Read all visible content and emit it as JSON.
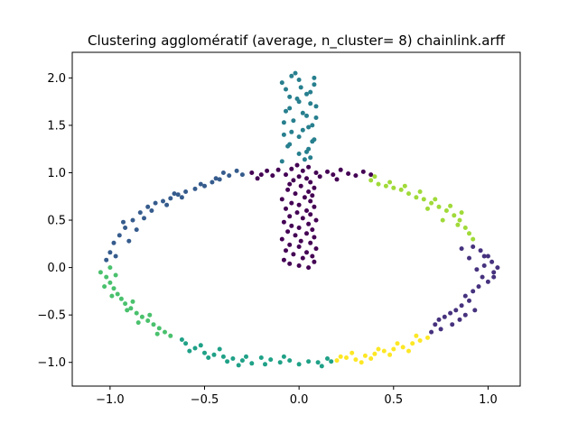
{
  "chart_data": {
    "type": "scatter",
    "title": "Clustering agglomératif (average, n_cluster= 8) chainlink.arff",
    "xlabel": "",
    "ylabel": "",
    "xlim": [
      -1.2,
      1.17
    ],
    "ylim": [
      -1.25,
      2.27
    ],
    "xticks": [
      -1.0,
      -0.5,
      0.0,
      0.5,
      1.0
    ],
    "xtick_labels": [
      "−1.0",
      "−0.5",
      "0.0",
      "0.5",
      "1.0"
    ],
    "yticks": [
      -1.0,
      -0.5,
      0.0,
      0.5,
      1.0,
      1.5,
      2.0
    ],
    "ytick_labels": [
      "−1.0",
      "−0.5",
      "0.0",
      "0.5",
      "1.0",
      "1.5",
      "2.0"
    ],
    "grid": false,
    "legend": "none",
    "clusters": [
      {
        "id": 0,
        "color": "#440154",
        "description": "vertical bar plus top ring arc",
        "points": [
          [
            0.0,
            0.02
          ],
          [
            0.05,
            0.0
          ],
          [
            -0.05,
            0.04
          ],
          [
            0.08,
            0.06
          ],
          [
            -0.08,
            0.08
          ],
          [
            0.02,
            0.1
          ],
          [
            0.07,
            0.12
          ],
          [
            -0.03,
            0.14
          ],
          [
            0.04,
            0.16
          ],
          [
            -0.07,
            0.18
          ],
          [
            0.09,
            0.2
          ],
          [
            0.0,
            0.22
          ],
          [
            -0.05,
            0.24
          ],
          [
            0.06,
            0.26
          ],
          [
            0.01,
            0.28
          ],
          [
            -0.09,
            0.3
          ],
          [
            0.08,
            0.32
          ],
          [
            -0.02,
            0.34
          ],
          [
            0.04,
            0.36
          ],
          [
            -0.06,
            0.38
          ],
          [
            0.07,
            0.4
          ],
          [
            0.0,
            0.42
          ],
          [
            -0.04,
            0.44
          ],
          [
            0.05,
            0.46
          ],
          [
            -0.08,
            0.48
          ],
          [
            0.09,
            0.5
          ],
          [
            0.02,
            0.52
          ],
          [
            -0.05,
            0.54
          ],
          [
            0.06,
            0.56
          ],
          [
            -0.01,
            0.58
          ],
          [
            0.04,
            0.6
          ],
          [
            -0.07,
            0.62
          ],
          [
            0.08,
            0.64
          ],
          [
            0.0,
            0.66
          ],
          [
            -0.04,
            0.68
          ],
          [
            0.06,
            0.7
          ],
          [
            -0.09,
            0.72
          ],
          [
            0.03,
            0.74
          ],
          [
            0.07,
            0.76
          ],
          [
            -0.02,
            0.78
          ],
          [
            0.05,
            0.8
          ],
          [
            -0.06,
            0.82
          ],
          [
            0.08,
            0.84
          ],
          [
            0.01,
            0.86
          ],
          [
            -0.05,
            0.88
          ],
          [
            0.06,
            0.9
          ],
          [
            -0.03,
            0.92
          ],
          [
            0.04,
            0.94
          ],
          [
            0.0,
            0.96
          ],
          [
            -0.07,
            0.98
          ],
          [
            0.09,
            1.0
          ],
          [
            0.02,
            1.02
          ],
          [
            -0.04,
            1.04
          ],
          [
            0.05,
            1.06
          ],
          [
            -0.01,
            1.08
          ],
          [
            -0.2,
            0.98
          ],
          [
            -0.17,
            1.02
          ],
          [
            -0.14,
            0.97
          ],
          [
            -0.11,
            1.03
          ],
          [
            -0.25,
            1.0
          ],
          [
            0.15,
            1.01
          ],
          [
            0.18,
            0.98
          ],
          [
            0.22,
            1.03
          ],
          [
            0.26,
            0.99
          ],
          [
            0.3,
            0.97
          ],
          [
            0.34,
            1.01
          ],
          [
            0.38,
            0.98
          ],
          [
            0.11,
            0.96
          ],
          [
            -0.22,
            0.94
          ],
          [
            0.2,
            0.93
          ]
        ]
      },
      {
        "id": 1,
        "color": "#46327e",
        "description": "right-lower ring segment",
        "points": [
          [
            0.92,
            0.22
          ],
          [
            0.96,
            0.18
          ],
          [
            0.98,
            0.12
          ],
          [
            1.02,
            0.06
          ],
          [
            1.05,
            0.0
          ],
          [
            1.03,
            -0.05
          ],
          [
            0.98,
            0.02
          ],
          [
            0.94,
            -0.02
          ],
          [
            0.9,
            0.1
          ],
          [
            0.97,
            -0.1
          ],
          [
            1.0,
            -0.15
          ],
          [
            0.95,
            -0.2
          ],
          [
            0.92,
            -0.25
          ],
          [
            0.88,
            -0.3
          ],
          [
            0.9,
            -0.35
          ],
          [
            0.86,
            -0.4
          ],
          [
            0.83,
            -0.45
          ],
          [
            0.8,
            -0.48
          ],
          [
            0.77,
            -0.52
          ],
          [
            0.74,
            -0.55
          ],
          [
            0.72,
            -0.6
          ],
          [
            0.75,
            -0.65
          ],
          [
            0.7,
            -0.68
          ],
          [
            0.88,
            -0.5
          ],
          [
            0.85,
            -0.55
          ],
          [
            0.93,
            -0.45
          ],
          [
            1.0,
            0.12
          ],
          [
            1.03,
            -0.1
          ],
          [
            0.86,
            0.2
          ],
          [
            0.81,
            -0.6
          ]
        ]
      },
      {
        "id": 2,
        "color": "#365c8d",
        "description": "left-upper ring segment",
        "points": [
          [
            -0.3,
            0.98
          ],
          [
            -0.33,
            1.02
          ],
          [
            -0.37,
            0.97
          ],
          [
            -0.42,
            0.93
          ],
          [
            -0.46,
            0.9
          ],
          [
            -0.5,
            0.86
          ],
          [
            -0.55,
            0.83
          ],
          [
            -0.6,
            0.8
          ],
          [
            -0.64,
            0.77
          ],
          [
            -0.68,
            0.73
          ],
          [
            -0.72,
            0.7
          ],
          [
            -0.76,
            0.68
          ],
          [
            -0.8,
            0.64
          ],
          [
            -0.84,
            0.58
          ],
          [
            -0.88,
            0.5
          ],
          [
            -0.92,
            0.42
          ],
          [
            -0.95,
            0.34
          ],
          [
            -0.98,
            0.26
          ],
          [
            -1.0,
            0.16
          ],
          [
            -1.02,
            0.08
          ],
          [
            -0.97,
            0.12
          ],
          [
            -0.9,
            0.28
          ],
          [
            -0.86,
            0.4
          ],
          [
            -0.82,
            0.52
          ],
          [
            -0.7,
            0.66
          ],
          [
            -0.62,
            0.74
          ],
          [
            -0.52,
            0.88
          ],
          [
            -0.44,
            0.94
          ],
          [
            -0.66,
            0.78
          ],
          [
            -0.78,
            0.6
          ],
          [
            -0.93,
            0.48
          ],
          [
            -0.4,
            1.0
          ]
        ]
      },
      {
        "id": 3,
        "color": "#277f8e",
        "description": "vertical bar top section",
        "points": [
          [
            0.0,
            1.2
          ],
          [
            0.05,
            1.25
          ],
          [
            -0.05,
            1.3
          ],
          [
            0.08,
            1.35
          ],
          [
            -0.08,
            1.4
          ],
          [
            0.02,
            1.45
          ],
          [
            0.07,
            1.5
          ],
          [
            -0.03,
            1.55
          ],
          [
            0.04,
            1.6
          ],
          [
            -0.07,
            1.65
          ],
          [
            0.09,
            1.7
          ],
          [
            0.0,
            1.75
          ],
          [
            -0.05,
            1.8
          ],
          [
            0.06,
            1.85
          ],
          [
            0.01,
            1.9
          ],
          [
            -0.09,
            1.95
          ],
          [
            0.08,
            2.0
          ],
          [
            -0.02,
            2.05
          ],
          [
            0.04,
            1.22
          ],
          [
            -0.06,
            1.28
          ],
          [
            0.07,
            1.33
          ],
          [
            0.0,
            1.38
          ],
          [
            -0.04,
            1.43
          ],
          [
            0.05,
            1.48
          ],
          [
            -0.08,
            1.53
          ],
          [
            0.09,
            1.58
          ],
          [
            0.02,
            1.63
          ],
          [
            -0.05,
            1.68
          ],
          [
            0.06,
            1.73
          ],
          [
            -0.01,
            1.78
          ],
          [
            0.04,
            1.83
          ],
          [
            -0.07,
            1.88
          ],
          [
            0.08,
            1.93
          ],
          [
            0.0,
            1.98
          ],
          [
            -0.04,
            2.02
          ],
          [
            0.06,
            1.16
          ],
          [
            -0.09,
            1.12
          ],
          [
            0.03,
            1.14
          ]
        ]
      },
      {
        "id": 4,
        "color": "#1fa187",
        "description": "bottom-left ring segment",
        "points": [
          [
            -0.05,
            -0.98
          ],
          [
            -0.1,
            -1.0
          ],
          [
            -0.15,
            -0.97
          ],
          [
            -0.2,
            -0.95
          ],
          [
            -0.25,
            -1.01
          ],
          [
            -0.3,
            -0.98
          ],
          [
            -0.35,
            -0.96
          ],
          [
            -0.4,
            -0.94
          ],
          [
            -0.45,
            -0.92
          ],
          [
            -0.5,
            -0.9
          ],
          [
            -0.55,
            -0.85
          ],
          [
            -0.6,
            -0.8
          ],
          [
            -0.62,
            -0.76
          ],
          [
            0.0,
            -1.02
          ],
          [
            0.05,
            -0.99
          ],
          [
            0.1,
            -1.0
          ],
          [
            0.15,
            -0.96
          ],
          [
            -0.08,
            -0.94
          ],
          [
            -0.18,
            -1.02
          ],
          [
            -0.28,
            -0.94
          ],
          [
            -0.38,
            -0.99
          ],
          [
            -0.48,
            -0.95
          ],
          [
            -0.58,
            -0.88
          ],
          [
            0.12,
            -1.04
          ],
          [
            0.17,
            -0.99
          ],
          [
            -0.42,
            -0.86
          ],
          [
            -0.52,
            -0.82
          ],
          [
            -0.32,
            -1.03
          ]
        ]
      },
      {
        "id": 5,
        "color": "#4ac16d",
        "description": "left-lower ring segment",
        "points": [
          [
            -1.05,
            -0.05
          ],
          [
            -1.02,
            -0.1
          ],
          [
            -1.0,
            -0.16
          ],
          [
            -0.98,
            -0.22
          ],
          [
            -0.96,
            -0.28
          ],
          [
            -0.94,
            -0.33
          ],
          [
            -0.92,
            -0.38
          ],
          [
            -0.89,
            -0.43
          ],
          [
            -0.86,
            -0.48
          ],
          [
            -0.83,
            -0.52
          ],
          [
            -0.8,
            -0.56
          ],
          [
            -0.77,
            -0.6
          ],
          [
            -0.74,
            -0.64
          ],
          [
            -0.71,
            -0.68
          ],
          [
            -0.68,
            -0.72
          ],
          [
            -1.03,
            -0.2
          ],
          [
            -0.99,
            -0.3
          ],
          [
            -0.91,
            -0.45
          ],
          [
            -0.85,
            -0.58
          ],
          [
            -0.75,
            -0.7
          ],
          [
            -1.0,
            0.0
          ],
          [
            -0.97,
            -0.08
          ],
          [
            -0.88,
            -0.36
          ],
          [
            -0.79,
            -0.5
          ]
        ]
      },
      {
        "id": 6,
        "color": "#a0da39",
        "description": "right-upper ring segment",
        "points": [
          [
            0.38,
            0.92
          ],
          [
            0.42,
            0.88
          ],
          [
            0.46,
            0.86
          ],
          [
            0.5,
            0.84
          ],
          [
            0.54,
            0.82
          ],
          [
            0.58,
            0.78
          ],
          [
            0.62,
            0.74
          ],
          [
            0.66,
            0.72
          ],
          [
            0.7,
            0.68
          ],
          [
            0.74,
            0.64
          ],
          [
            0.78,
            0.6
          ],
          [
            0.82,
            0.55
          ],
          [
            0.85,
            0.5
          ],
          [
            0.88,
            0.42
          ],
          [
            0.9,
            0.36
          ],
          [
            0.92,
            0.3
          ],
          [
            0.4,
            0.96
          ],
          [
            0.56,
            0.86
          ],
          [
            0.64,
            0.8
          ],
          [
            0.72,
            0.72
          ],
          [
            0.8,
            0.65
          ],
          [
            0.86,
            0.58
          ],
          [
            0.84,
            0.45
          ],
          [
            0.76,
            0.5
          ],
          [
            0.68,
            0.62
          ],
          [
            0.48,
            0.9
          ]
        ]
      },
      {
        "id": 7,
        "color": "#fde725",
        "description": "bottom-right ring segment",
        "points": [
          [
            0.2,
            -0.98
          ],
          [
            0.25,
            -0.95
          ],
          [
            0.3,
            -0.97
          ],
          [
            0.35,
            -0.93
          ],
          [
            0.4,
            -0.91
          ],
          [
            0.45,
            -0.88
          ],
          [
            0.5,
            -0.86
          ],
          [
            0.55,
            -0.84
          ],
          [
            0.6,
            -0.8
          ],
          [
            0.64,
            -0.77
          ],
          [
            0.68,
            -0.74
          ],
          [
            0.28,
            -0.9
          ],
          [
            0.38,
            -0.96
          ],
          [
            0.48,
            -0.92
          ],
          [
            0.58,
            -0.88
          ],
          [
            0.62,
            -0.72
          ],
          [
            0.52,
            -0.8
          ],
          [
            0.42,
            -0.86
          ],
          [
            0.33,
            -1.0
          ],
          [
            0.22,
            -0.94
          ]
        ]
      }
    ]
  }
}
